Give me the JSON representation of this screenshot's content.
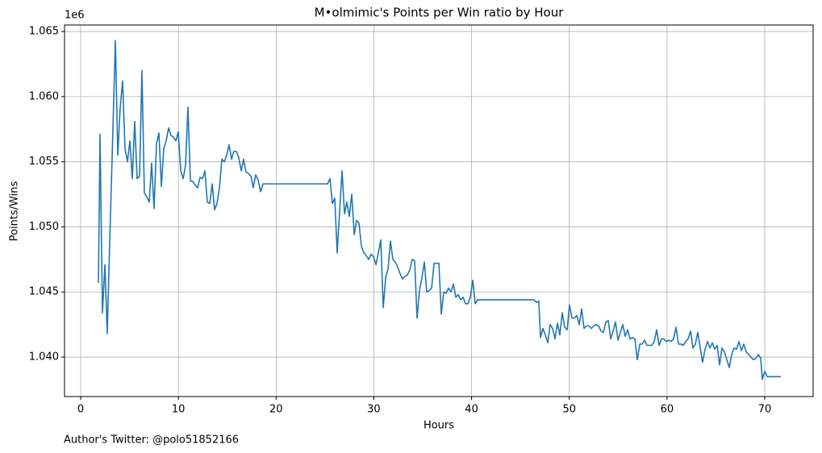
{
  "chart_data": {
    "type": "line",
    "title": "M•olmimic's Points per Win ratio by Hour",
    "x_label": "Hours",
    "y_label": "Points/Wins",
    "y_offset_label": "1e6",
    "caption": "Author's Twitter: @polo51852166",
    "xlim": [
      -1.65,
      74.95
    ],
    "xticks": [
      0,
      10,
      20,
      30,
      40,
      50,
      60,
      70
    ],
    "ylim": [
      1.03697,
      1.0655
    ],
    "yticks": [
      {
        "value": 1.04,
        "label": "1.040"
      },
      1.045,
      {
        "value": 1.05,
        "label": "1.050"
      },
      1.055,
      {
        "value": 1.06,
        "label": "1.060"
      },
      1.065
    ],
    "grid": true,
    "x": [
      1.82,
      1.98,
      2.23,
      2.48,
      2.72,
      2.97,
      3.22,
      3.55,
      3.8,
      4.04,
      4.29,
      4.54,
      4.79,
      5.04,
      5.28,
      5.53,
      5.78,
      6.03,
      6.27,
      6.52,
      6.77,
      7.02,
      7.26,
      7.51,
      7.76,
      8.01,
      8.26,
      8.5,
      8.75,
      9.0,
      9.25,
      9.49,
      9.74,
      9.99,
      10.24,
      10.49,
      10.73,
      10.98,
      11.23,
      11.47,
      11.72,
      11.97,
      12.22,
      12.47,
      12.71,
      12.96,
      13.21,
      13.46,
      13.7,
      13.95,
      14.2,
      14.45,
      14.7,
      14.94,
      15.19,
      15.44,
      15.68,
      15.93,
      16.18,
      16.43,
      16.67,
      16.92,
      17.17,
      17.42,
      17.66,
      17.91,
      18.16,
      18.41,
      18.66,
      25.26,
      25.51,
      25.76,
      26.0,
      26.25,
      26.5,
      26.75,
      27.0,
      27.24,
      27.49,
      27.74,
      27.99,
      28.23,
      28.48,
      28.73,
      28.98,
      29.22,
      29.47,
      29.72,
      29.97,
      30.22,
      30.46,
      30.71,
      30.96,
      31.21,
      31.46,
      31.7,
      31.95,
      32.2,
      32.44,
      32.69,
      32.94,
      33.18,
      33.43,
      33.68,
      33.93,
      34.18,
      34.42,
      34.67,
      34.92,
      35.17,
      35.41,
      35.66,
      35.91,
      36.16,
      36.41,
      36.66,
      36.9,
      37.15,
      37.4,
      37.64,
      37.89,
      38.14,
      38.39,
      38.63,
      38.88,
      39.13,
      39.38,
      39.62,
      39.87,
      40.12,
      40.37,
      40.61,
      46.39,
      46.64,
      46.88,
      47.05,
      47.3,
      47.55,
      47.8,
      48.04,
      48.29,
      48.54,
      48.79,
      49.03,
      49.28,
      49.53,
      49.78,
      50.02,
      50.27,
      50.52,
      50.77,
      51.02,
      51.26,
      51.51,
      51.76,
      52.01,
      52.25,
      52.5,
      52.75,
      53.0,
      53.24,
      53.49,
      53.74,
      53.99,
      54.24,
      54.48,
      54.73,
      54.98,
      55.23,
      55.47,
      55.72,
      55.97,
      56.22,
      56.46,
      56.71,
      56.96,
      57.21,
      57.45,
      57.7,
      57.95,
      58.2,
      58.44,
      58.69,
      58.94,
      59.19,
      59.43,
      59.68,
      59.93,
      60.18,
      60.43,
      60.67,
      60.92,
      61.17,
      61.42,
      61.66,
      61.91,
      62.16,
      62.41,
      62.65,
      62.9,
      63.15,
      63.4,
      63.64,
      63.89,
      64.14,
      64.39,
      64.63,
      64.88,
      65.13,
      65.38,
      65.62,
      65.87,
      66.12,
      66.37,
      66.62,
      66.86,
      67.11,
      67.36,
      67.61,
      67.85,
      68.1,
      68.35,
      68.6,
      68.85,
      69.09,
      69.34,
      69.59,
      69.75,
      70.0,
      70.25,
      71.65
    ],
    "series": [
      {
        "name": "Points/Wins",
        "color": "#1f77b4",
        "values": [
          1.0457,
          1.0571,
          1.0434,
          1.0471,
          1.0418,
          1.0488,
          1.0553,
          1.0643,
          1.0555,
          1.0591,
          1.0612,
          1.056,
          1.055,
          1.0566,
          1.0537,
          1.0581,
          1.0537,
          1.0539,
          1.062,
          1.0526,
          1.0523,
          1.0519,
          1.0549,
          1.0514,
          1.0564,
          1.0572,
          1.0531,
          1.056,
          1.0566,
          1.0576,
          1.057,
          1.0569,
          1.0566,
          1.0573,
          1.0543,
          1.0537,
          1.0547,
          1.0592,
          1.0535,
          1.0535,
          1.0532,
          1.053,
          1.0538,
          1.0537,
          1.0543,
          1.0519,
          1.0518,
          1.0533,
          1.0513,
          1.0518,
          1.053,
          1.0552,
          1.055,
          1.0555,
          1.0563,
          1.0552,
          1.0558,
          1.0558,
          1.0553,
          1.0543,
          1.0552,
          1.0542,
          1.0541,
          1.0539,
          1.053,
          1.054,
          1.0536,
          1.0527,
          1.0533,
          1.0533,
          1.0537,
          1.0518,
          1.0522,
          1.048,
          1.0512,
          1.0543,
          1.051,
          1.0519,
          1.0508,
          1.0525,
          1.0494,
          1.0505,
          1.0503,
          1.0485,
          1.048,
          1.0478,
          1.0475,
          1.0479,
          1.0477,
          1.0471,
          1.048,
          1.049,
          1.0438,
          1.0461,
          1.0468,
          1.0489,
          1.0475,
          1.0473,
          1.0469,
          1.0464,
          1.046,
          1.0462,
          1.0463,
          1.0467,
          1.0475,
          1.0474,
          1.043,
          1.0451,
          1.0461,
          1.0473,
          1.045,
          1.0451,
          1.0453,
          1.0472,
          1.0472,
          1.0472,
          1.0433,
          1.045,
          1.0449,
          1.0453,
          1.045,
          1.0456,
          1.0446,
          1.0448,
          1.0444,
          1.0446,
          1.0441,
          1.0441,
          1.0446,
          1.0459,
          1.0441,
          1.0444,
          1.0444,
          1.0442,
          1.0443,
          1.0415,
          1.0422,
          1.0417,
          1.0411,
          1.0425,
          1.0422,
          1.0414,
          1.0426,
          1.0417,
          1.0434,
          1.0423,
          1.0421,
          1.044,
          1.043,
          1.043,
          1.0432,
          1.0425,
          1.0437,
          1.0422,
          1.0424,
          1.0424,
          1.0422,
          1.0424,
          1.0425,
          1.0424,
          1.042,
          1.0419,
          1.0427,
          1.0428,
          1.0414,
          1.042,
          1.0427,
          1.0413,
          1.0419,
          1.0425,
          1.0416,
          1.0421,
          1.0414,
          1.0415,
          1.0414,
          1.0398,
          1.041,
          1.041,
          1.0413,
          1.0409,
          1.0409,
          1.0409,
          1.0412,
          1.0421,
          1.0409,
          1.0414,
          1.0414,
          1.0412,
          1.0413,
          1.0412,
          1.0414,
          1.0423,
          1.041,
          1.041,
          1.0409,
          1.0412,
          1.0414,
          1.042,
          1.0407,
          1.041,
          1.0419,
          1.0407,
          1.0396,
          1.0406,
          1.0412,
          1.0407,
          1.0411,
          1.0406,
          1.0409,
          1.0394,
          1.0407,
          1.0404,
          1.0398,
          1.0392,
          1.0402,
          1.0407,
          1.0406,
          1.0412,
          1.0405,
          1.041,
          1.0404,
          1.0402,
          1.04,
          1.0398,
          1.0399,
          1.0402,
          1.0399,
          1.0383,
          1.0389,
          1.0385,
          1.0385
        ]
      }
    ]
  }
}
